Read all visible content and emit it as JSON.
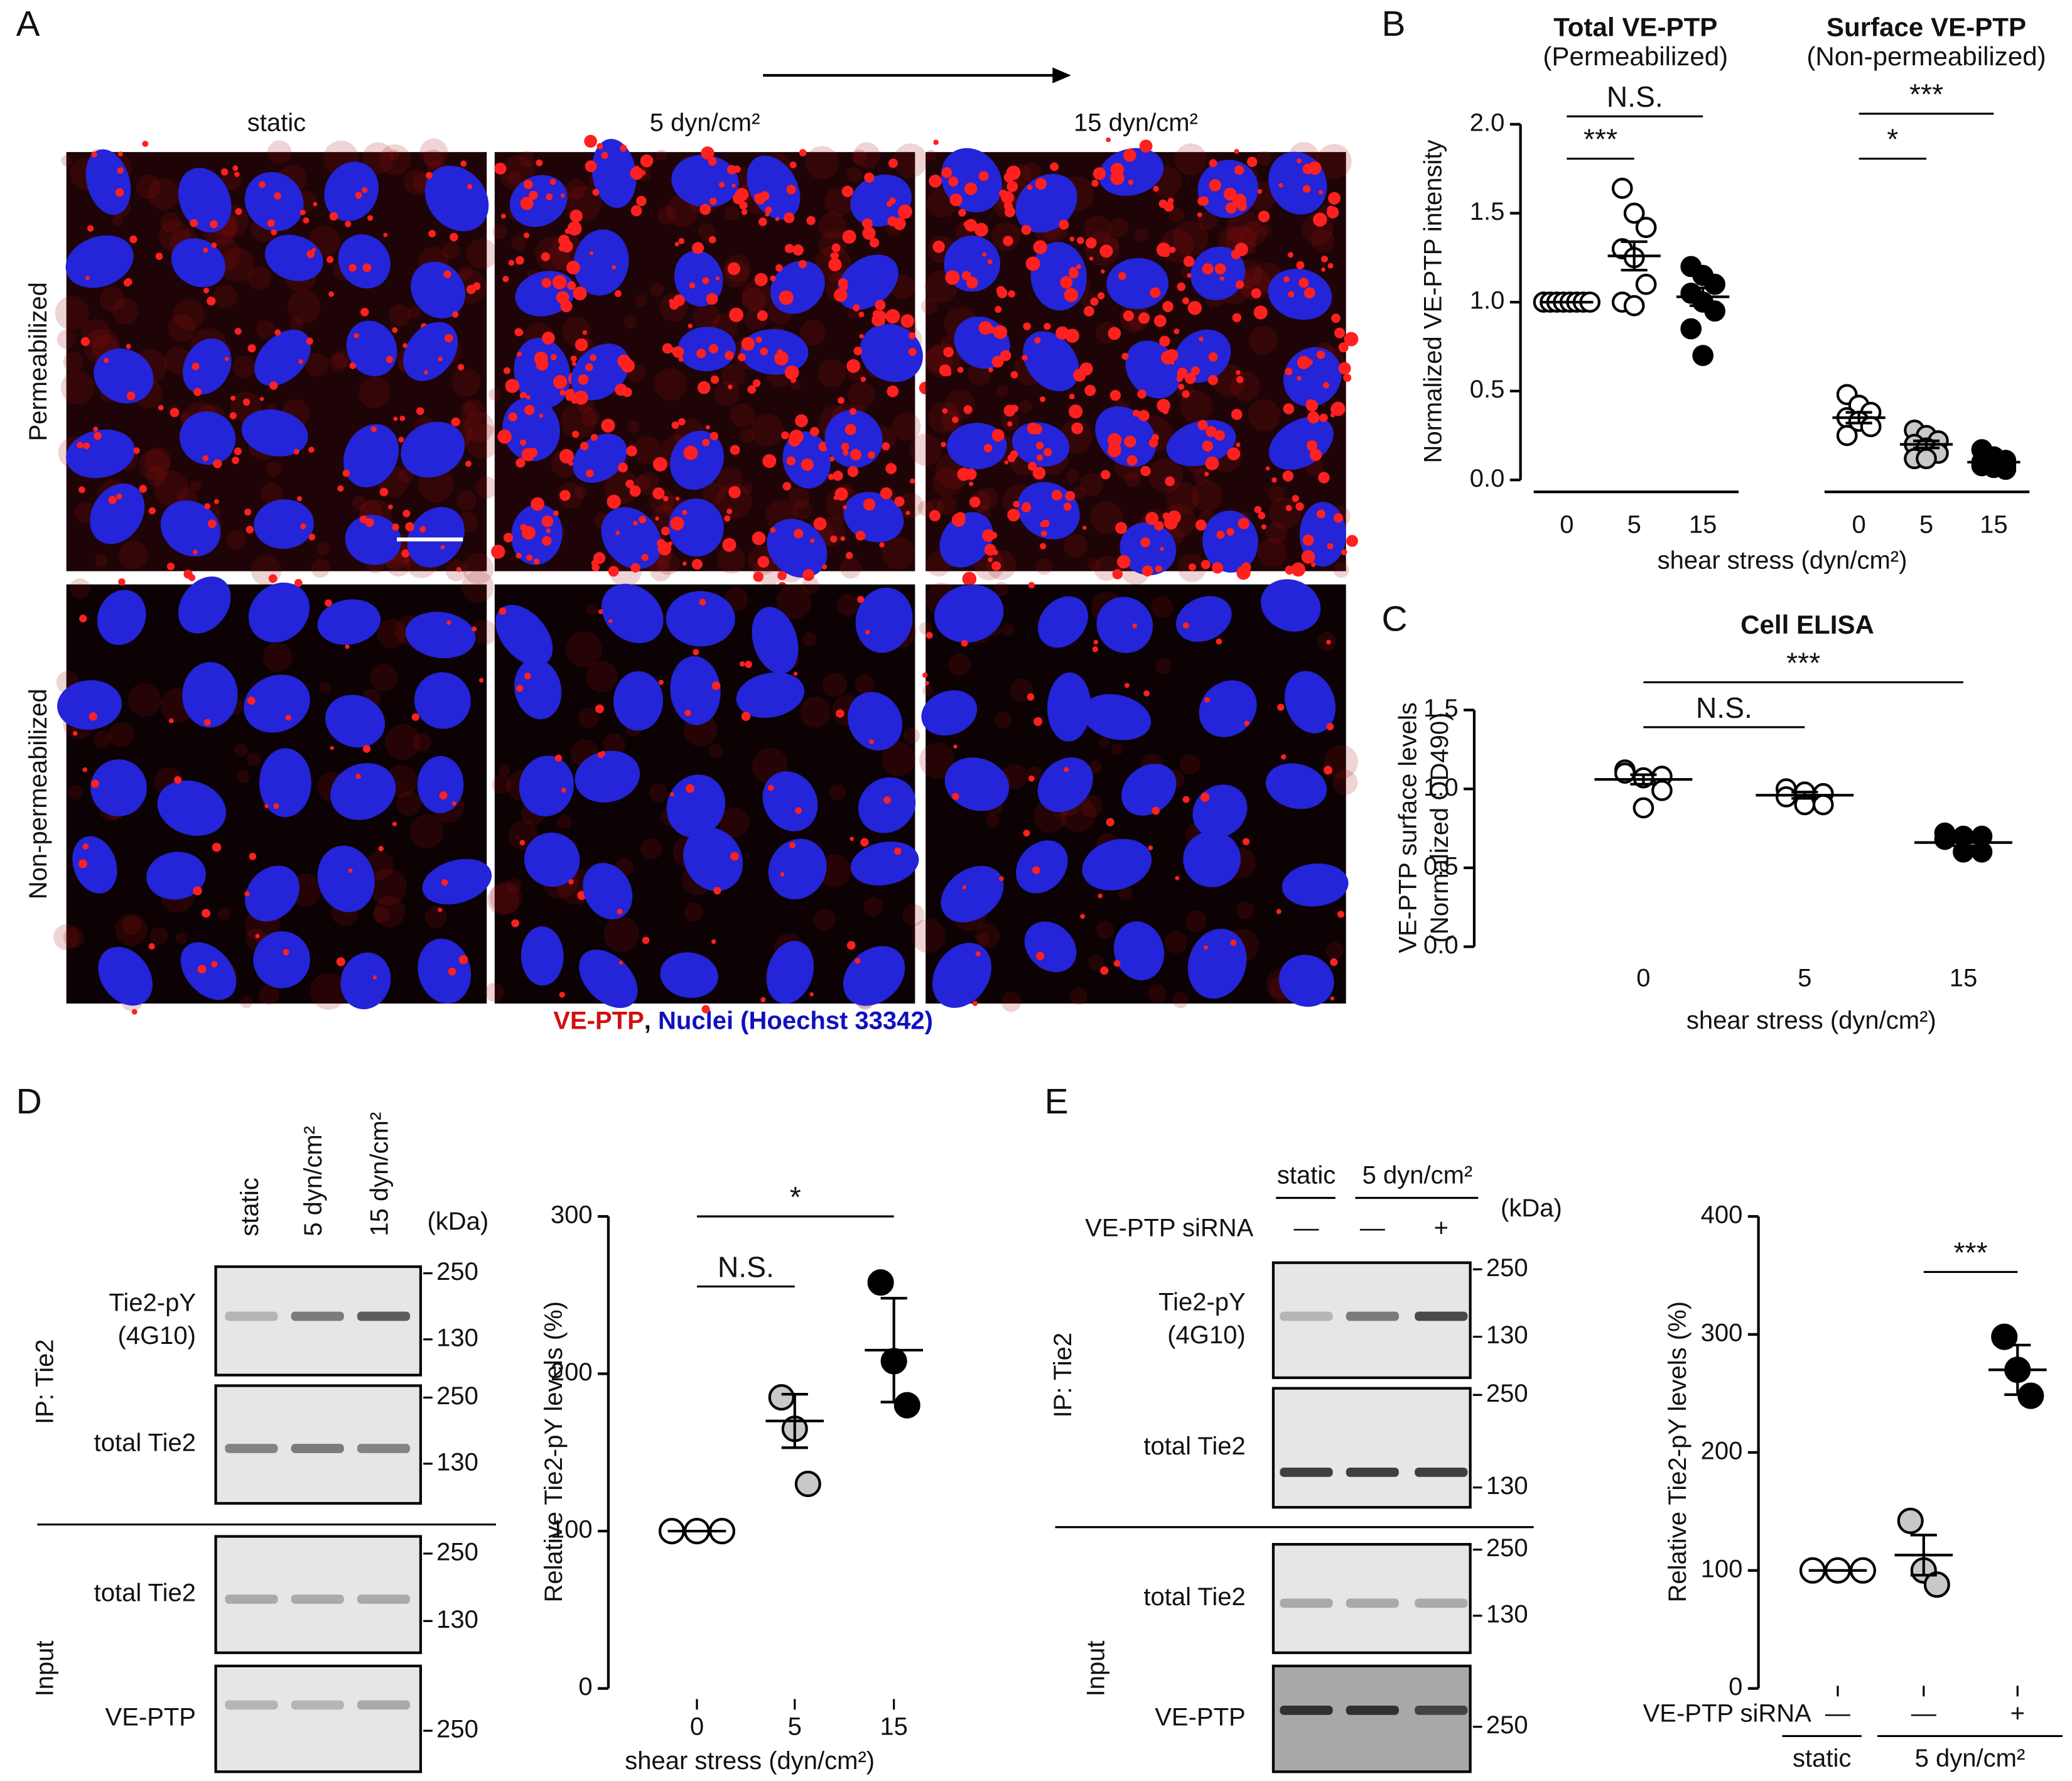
{
  "panel_labels": [
    "A",
    "B",
    "C",
    "D",
    "E"
  ],
  "panel_a": {
    "columns": [
      "static",
      "5 dyn/cm²",
      "15 dyn/cm²"
    ],
    "rows": [
      "Permeabilized",
      "Non-permeabilized"
    ],
    "legend": {
      "red": "VE-PTP",
      "separator": ",",
      "blue": "Nuclei (Hoechst 33342)"
    }
  },
  "blot_d": {
    "lanes": [
      "static",
      "5 dyn/cm²",
      "15 dyn/cm²"
    ],
    "unit": "(kDa)",
    "ip_label": "IP: Tie2",
    "input_label": "Input",
    "blots": [
      {
        "label": [
          "Tie2-pY",
          "(4G10)"
        ],
        "markers": [
          "250",
          "130"
        ]
      },
      {
        "label": [
          "total Tie2"
        ],
        "markers": [
          "250",
          "130"
        ]
      },
      {
        "label": [
          "total Tie2"
        ],
        "markers": [
          "250",
          "130"
        ]
      },
      {
        "label": [
          "VE-PTP"
        ],
        "markers": [
          "250"
        ]
      }
    ]
  },
  "blot_e": {
    "conditions": [
      "static",
      "5 dyn/cm²"
    ],
    "row_label": "VE-PTP siRNA",
    "lanes": [
      "—",
      "—",
      "+"
    ],
    "unit": "(kDa)",
    "ip_label": "IP: Tie2",
    "input_label": "Input",
    "blots": [
      {
        "label": [
          "Tie2-pY",
          "(4G10)"
        ],
        "markers": [
          "250",
          "130"
        ]
      },
      {
        "label": [
          "total Tie2"
        ],
        "markers": [
          "250",
          "130"
        ]
      },
      {
        "label": [
          "total Tie2"
        ],
        "markers": [
          "250",
          "130"
        ]
      },
      {
        "label": [
          "VE-PTP"
        ],
        "markers": [
          "250"
        ]
      }
    ]
  },
  "chart_data": [
    {
      "type": "dot",
      "ylabel": [
        "Normalized VE-PTP intensity"
      ],
      "xlabel": "shear stress (dyn/cm²)",
      "ylim": [
        0,
        2
      ],
      "yticks": [
        {
          "value": 0,
          "label": "0.0"
        },
        {
          "value": 0.5,
          "label": "0.5"
        },
        {
          "value": 1,
          "label": "1.0"
        },
        {
          "value": 1.5,
          "label": "1.5"
        },
        {
          "value": 2,
          "label": "2.0"
        }
      ],
      "groups": [
        {
          "title": "Total VE-PTP",
          "subtitle": "(Permeabilized)",
          "categories": [
            "0",
            "5",
            "15"
          ],
          "colors": [
            "#ffffff",
            "#ffffff",
            "#000000"
          ],
          "points": [
            [
              1,
              1,
              1,
              1,
              1,
              1,
              1,
              1
            ],
            [
              1.64,
              1.5,
              1.42,
              1.3,
              1.25,
              1.1,
              1.0,
              0.98
            ],
            [
              1.2,
              1.15,
              1.1,
              1.05,
              1.0,
              0.95,
              0.85,
              0.7
            ]
          ],
          "means": [
            1.0,
            1.26,
            1.03
          ],
          "errors": [
            0,
            0.08,
            0.05
          ],
          "significance": [
            "N.S.",
            "***"
          ]
        },
        {
          "title": "Surface VE-PTP",
          "subtitle": "(Non-permeabilized)",
          "categories": [
            "0",
            "5",
            "15"
          ],
          "colors": [
            "#ffffff",
            "#c8c8c8",
            "#000000"
          ],
          "points": [
            [
              0.48,
              0.42,
              0.38,
              0.35,
              0.33,
              0.3,
              0.25
            ],
            [
              0.28,
              0.25,
              0.22,
              0.2,
              0.18,
              0.15,
              0.12,
              0.12
            ],
            [
              0.17,
              0.13,
              0.11,
              0.1,
              0.09,
              0.08,
              0.08,
              0.07,
              0.06
            ]
          ],
          "means": [
            0.35,
            0.2,
            0.1
          ],
          "errors": [
            0.03,
            0.02,
            0.01
          ],
          "significance": [
            "***",
            "*"
          ]
        }
      ]
    },
    {
      "type": "dot",
      "title": "Cell ELISA",
      "ylabel": [
        "VE-PTP surface levels",
        "(Normalized OD490)"
      ],
      "xlabel": "shear stress (dyn/cm²)",
      "ylim": [
        0,
        1.5
      ],
      "yticks": [
        {
          "value": 0,
          "label": "0.0"
        },
        {
          "value": 0.5,
          "label": "0.5"
        },
        {
          "value": 1,
          "label": "1.0"
        },
        {
          "value": 1.5,
          "label": "1.5"
        }
      ],
      "groups": [
        {
          "categories": [
            "0",
            "5",
            "15"
          ],
          "colors": [
            "#ffffff",
            "#ffffff",
            "#000000"
          ],
          "points": [
            [
              1.12,
              1.07,
              1.08,
              1.1,
              0.88,
              0.99
            ],
            [
              1.0,
              0.98,
              0.97,
              0.95,
              0.9,
              0.9
            ],
            [
              0.72,
              0.7,
              0.7,
              0.68,
              0.6,
              0.6
            ]
          ],
          "means": [
            1.06,
            0.96,
            0.66
          ],
          "errors": [
            0.03,
            0.02,
            0.02
          ],
          "significance": [
            "***",
            "N.S."
          ]
        }
      ]
    },
    {
      "type": "dot",
      "ylabel": [
        "Relative Tie2-pY levels (%)"
      ],
      "xlabel": "shear stress (dyn/cm²)",
      "ylim": [
        0,
        300
      ],
      "yticks": [
        0,
        100,
        200,
        300
      ],
      "groups": [
        {
          "categories": [
            "0",
            "5",
            "15"
          ],
          "colors": [
            "#ffffff",
            "#c8c8c8",
            "#000000"
          ],
          "points": [
            [
              100,
              100,
              100
            ],
            [
              185,
              165,
              130
            ],
            [
              258,
              208,
              180
            ]
          ],
          "means": [
            100,
            170,
            215
          ],
          "errors": [
            0,
            17,
            33
          ],
          "significance": [
            "*",
            "N.S."
          ]
        }
      ]
    },
    {
      "type": "dot",
      "ylabel": [
        "Relative Tie2-pY levels (%)"
      ],
      "category_title": "VE-PTP siRNA",
      "brackets": [
        "static",
        "5 dyn/cm²"
      ],
      "ylim": [
        0,
        400
      ],
      "yticks": [
        0,
        100,
        200,
        300,
        400
      ],
      "groups": [
        {
          "categories": [
            "—",
            "—",
            "+"
          ],
          "colors": [
            "#ffffff",
            "#c8c8c8",
            "#000000"
          ],
          "points": [
            [
              100,
              100,
              100
            ],
            [
              142,
              100,
              88
            ],
            [
              298,
              270,
              248
            ]
          ],
          "means": [
            100,
            113,
            270
          ],
          "errors": [
            0,
            17,
            21
          ],
          "significance": [
            "***"
          ]
        }
      ]
    }
  ]
}
